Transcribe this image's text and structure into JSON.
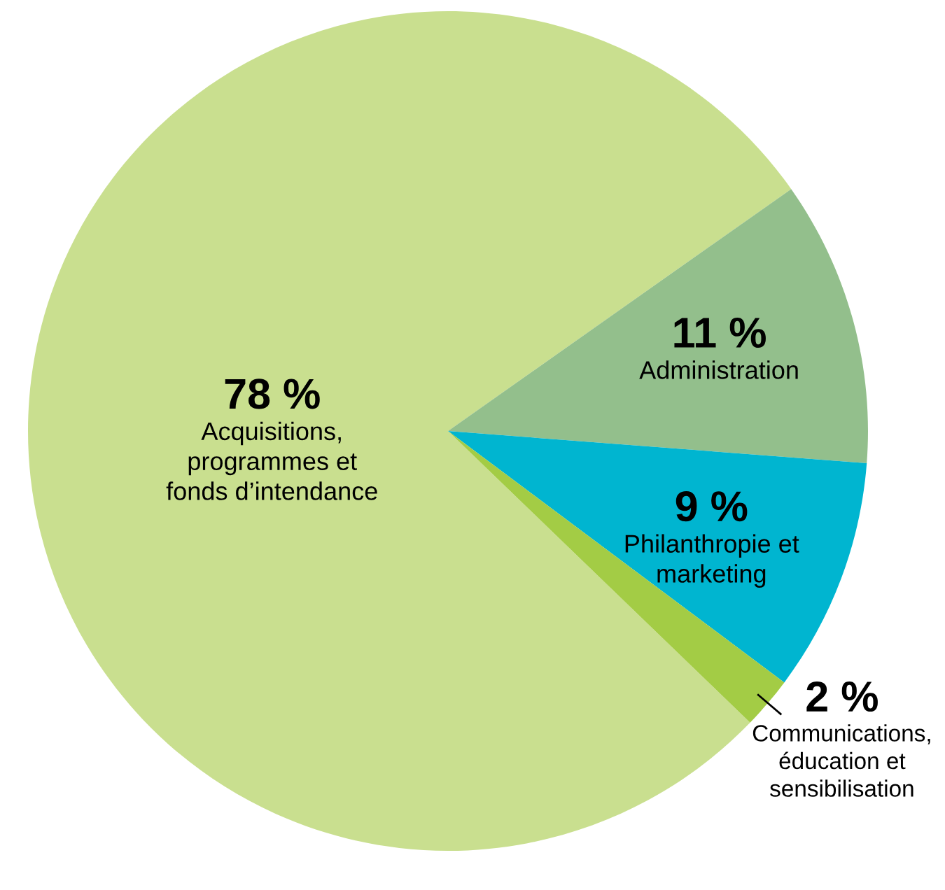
{
  "chart_data": {
    "type": "pie",
    "categories": [
      "Acquisitions,\nprogrammes et\nfonds d’intendance",
      "Administration",
      "Philanthropie et\nmarketing",
      "Communications,\néducation et\nsensibilisation"
    ],
    "values": [
      78,
      11,
      9,
      2
    ],
    "colors": [
      "#c9df8f",
      "#93bf8c",
      "#00b5d0",
      "#a3cc45"
    ],
    "value_labels": [
      "78 %",
      "11 %",
      "9 %",
      "2 %"
    ]
  }
}
